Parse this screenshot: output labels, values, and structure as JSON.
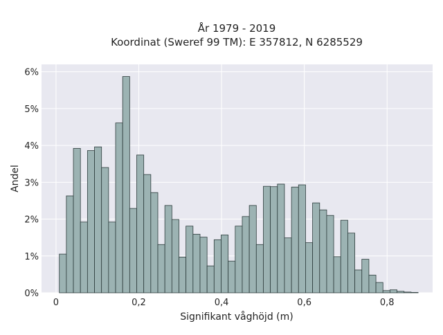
{
  "chart_data": {
    "type": "bar",
    "title_line1": "År 1979 - 2019",
    "title_line2": "Koordinat (Sweref 99 TM): E 357812, N 6285529",
    "xlabel": "Signifikant våghöjd (m)",
    "ylabel": "Andel",
    "xlim": [
      -0.035,
      0.91
    ],
    "ylim": [
      0,
      6.2
    ],
    "x_ticks": [
      0,
      0.2,
      0.4,
      0.6,
      0.8
    ],
    "x_tick_labels": [
      "0",
      "0,2",
      "0,4",
      "0,6",
      "0,8"
    ],
    "y_ticks": [
      0,
      1,
      2,
      3,
      4,
      5,
      6
    ],
    "y_tick_labels": [
      "0%",
      "1%",
      "2%",
      "3%",
      "4%",
      "5%",
      "6%"
    ],
    "grid": true,
    "legend": "none",
    "bin_width": 0.017,
    "bin_starts": [
      0.008,
      0.025,
      0.042,
      0.059,
      0.076,
      0.093,
      0.11,
      0.127,
      0.144,
      0.161,
      0.178,
      0.195,
      0.212,
      0.229,
      0.246,
      0.263,
      0.28,
      0.297,
      0.314,
      0.331,
      0.348,
      0.365,
      0.382,
      0.399,
      0.416,
      0.433,
      0.45,
      0.467,
      0.484,
      0.501,
      0.518,
      0.535,
      0.552,
      0.569,
      0.586,
      0.603,
      0.62,
      0.637,
      0.654,
      0.671,
      0.688,
      0.705,
      0.722,
      0.739,
      0.756,
      0.773,
      0.79,
      0.807,
      0.824,
      0.841,
      0.858
    ],
    "values": [
      1.05,
      2.63,
      3.92,
      1.92,
      3.86,
      3.96,
      3.4,
      1.92,
      4.61,
      5.87,
      2.29,
      3.74,
      3.21,
      2.72,
      1.31,
      2.37,
      1.99,
      0.97,
      1.81,
      1.59,
      1.51,
      0.73,
      1.44,
      1.57,
      0.86,
      1.81,
      2.07,
      2.37,
      1.31,
      2.89,
      2.88,
      2.95,
      1.49,
      2.87,
      2.93,
      1.36,
      2.44,
      2.25,
      2.1,
      0.98,
      1.97,
      1.62,
      0.62,
      0.91,
      0.48,
      0.28,
      0.06,
      0.08,
      0.04,
      0.02,
      0.01
    ],
    "colors": {
      "bar_fill": "#9cb3b3",
      "bar_stroke": "#2c3b3b",
      "plot_bg": "#e8e8f0",
      "grid": "#ffffff"
    }
  }
}
